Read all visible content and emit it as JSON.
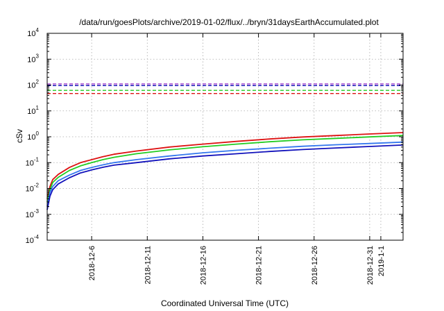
{
  "chart_data": {
    "type": "line",
    "title": "/data/run/goesPlots/archive/2019-01-02/flux/../bryn/31daysEarthAccumulated.plot",
    "xlabel": "Coordinated Universal Time (UTC)",
    "ylabel": "cSv",
    "yscale": "log",
    "ylim": [
      0.0001,
      10000
    ],
    "y_ticks": [
      {
        "base": "10",
        "exp": "-4",
        "value": 0.0001
      },
      {
        "base": "10",
        "exp": "-3",
        "value": 0.001
      },
      {
        "base": "10",
        "exp": "-2",
        "value": 0.01
      },
      {
        "base": "10",
        "exp": "-1",
        "value": 0.1
      },
      {
        "base": "10",
        "exp": "0",
        "value": 1
      },
      {
        "base": "10",
        "exp": "1",
        "value": 10
      },
      {
        "base": "10",
        "exp": "2",
        "value": 100
      },
      {
        "base": "10",
        "exp": "3",
        "value": 1000
      },
      {
        "base": "10",
        "exp": "4",
        "value": 10000
      }
    ],
    "xlim": [
      "2018-12-02",
      "2019-01-03"
    ],
    "x_ticks": [
      {
        "label": "2018-12-6",
        "date": "2018-12-06"
      },
      {
        "label": "2018-12-11",
        "date": "2018-12-11"
      },
      {
        "label": "2018-12-16",
        "date": "2018-12-16"
      },
      {
        "label": "2018-12-21",
        "date": "2018-12-21"
      },
      {
        "label": "2018-12-26",
        "date": "2018-12-26"
      },
      {
        "label": "2018-12-31",
        "date": "2018-12-31"
      },
      {
        "label": "2019-1-1",
        "date": "2019-01-01"
      }
    ],
    "grid": true,
    "legend": "none",
    "series": [
      {
        "color": "#dd1111",
        "x": [
          "2018-12-02",
          "2018-12-02T06:00",
          "2018-12-02T12:00",
          "2018-12-03",
          "2018-12-04",
          "2018-12-05",
          "2018-12-06",
          "2018-12-07",
          "2018-12-08",
          "2018-12-10",
          "2018-12-13",
          "2018-12-16",
          "2018-12-19",
          "2018-12-22",
          "2018-12-25",
          "2018-12-28",
          "2018-12-31",
          "2019-01-03"
        ],
        "y": [
          0.004,
          0.012,
          0.022,
          0.035,
          0.065,
          0.1,
          0.13,
          0.17,
          0.21,
          0.28,
          0.4,
          0.52,
          0.66,
          0.82,
          0.98,
          1.12,
          1.28,
          1.45
        ]
      },
      {
        "color": "#22cc22",
        "x": [
          "2018-12-02",
          "2018-12-02T06:00",
          "2018-12-02T12:00",
          "2018-12-03",
          "2018-12-04",
          "2018-12-05",
          "2018-12-06",
          "2018-12-07",
          "2018-12-08",
          "2018-12-10",
          "2018-12-13",
          "2018-12-16",
          "2018-12-19",
          "2018-12-22",
          "2018-12-25",
          "2018-12-28",
          "2018-12-31",
          "2019-01-03"
        ],
        "y": [
          0.003,
          0.009,
          0.017,
          0.027,
          0.05,
          0.075,
          0.1,
          0.13,
          0.16,
          0.22,
          0.31,
          0.41,
          0.52,
          0.64,
          0.76,
          0.87,
          0.99,
          1.12
        ]
      },
      {
        "color": "#3377ee",
        "x": [
          "2018-12-02",
          "2018-12-02T06:00",
          "2018-12-02T12:00",
          "2018-12-03",
          "2018-12-04",
          "2018-12-05",
          "2018-12-06",
          "2018-12-07",
          "2018-12-08",
          "2018-12-10",
          "2018-12-13",
          "2018-12-16",
          "2018-12-19",
          "2018-12-22",
          "2018-12-25",
          "2018-12-28",
          "2018-12-31",
          "2019-01-03"
        ],
        "y": [
          0.002,
          0.007,
          0.012,
          0.02,
          0.033,
          0.05,
          0.065,
          0.082,
          0.1,
          0.13,
          0.18,
          0.24,
          0.3,
          0.36,
          0.43,
          0.49,
          0.55,
          0.62
        ]
      },
      {
        "color": "#1111bb",
        "x": [
          "2018-12-02",
          "2018-12-02T06:00",
          "2018-12-02T12:00",
          "2018-12-03",
          "2018-12-04",
          "2018-12-05",
          "2018-12-06",
          "2018-12-07",
          "2018-12-08",
          "2018-12-10",
          "2018-12-13",
          "2018-12-16",
          "2018-12-19",
          "2018-12-22",
          "2018-12-25",
          "2018-12-28",
          "2018-12-31",
          "2019-01-03"
        ],
        "y": [
          0.0015,
          0.005,
          0.009,
          0.015,
          0.026,
          0.04,
          0.052,
          0.066,
          0.08,
          0.1,
          0.14,
          0.18,
          0.22,
          0.27,
          0.32,
          0.37,
          0.42,
          0.48
        ]
      }
    ],
    "thresholds": [
      {
        "value": 110,
        "color": "#9933cc"
      },
      {
        "value": 95,
        "color": "#1111bb"
      },
      {
        "value": 62,
        "color": "#22cc22"
      },
      {
        "value": 47,
        "color": "#dd1111"
      }
    ]
  }
}
